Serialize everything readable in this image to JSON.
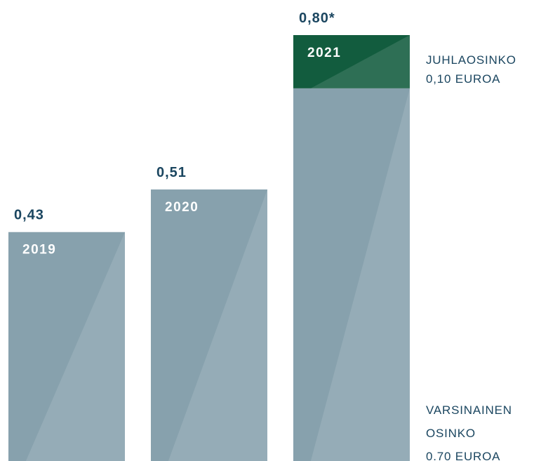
{
  "chart_data": {
    "type": "stacked_bar",
    "categories": [
      "2019",
      "2020",
      "2021"
    ],
    "series": [
      {
        "color": "#87a1ad",
        "values": [
          0.43,
          0.51,
          0.7
        ]
      },
      {
        "color": "#125c3e",
        "values": [
          null,
          null,
          0.1
        ]
      }
    ],
    "totals": [
      0.43,
      0.51,
      0.8
    ],
    "total_labels": [
      "0,43",
      "0,51",
      "0,80*"
    ],
    "annotations": [
      [
        "JUHLAOSINKO",
        "0,10 EUROA"
      ],
      [
        "VARSINAINEN",
        "OSINKO",
        "0.70 EUROA"
      ]
    ]
  }
}
